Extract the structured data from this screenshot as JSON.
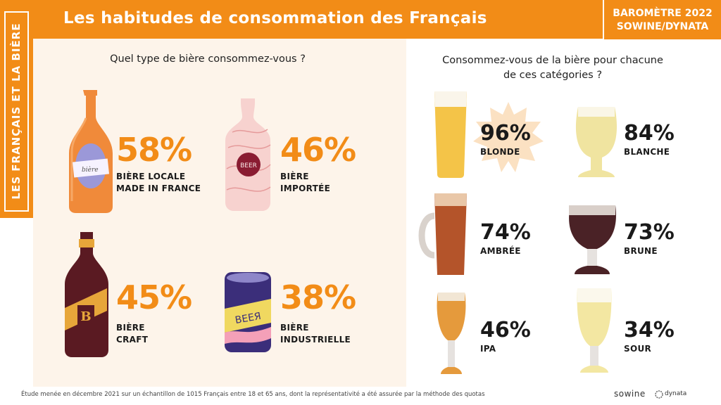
{
  "header": {
    "title": "Les habitudes de consommation des Français",
    "badge_line1": "BAROMÈTRE 2022",
    "badge_line2": "SOWINE/DYNATA"
  },
  "sidebar": {
    "label": "LES FRANÇAIS ET LA BIÈRE"
  },
  "left": {
    "question": "Quel type de bière consommez-vous ?",
    "items": [
      {
        "pct": "58%",
        "line1": "BIÈRE LOCALE",
        "line2": "MADE IN FRANCE",
        "icon": "local-beer-bottle-icon"
      },
      {
        "pct": "46%",
        "line1": "BIÈRE",
        "line2": "IMPORTÉE",
        "icon": "imported-beer-bottle-icon",
        "bottle_text": "BEER"
      },
      {
        "pct": "45%",
        "line1": "BIÈRE",
        "line2": "CRAFT",
        "icon": "craft-beer-bottle-icon",
        "bottle_text": "B"
      },
      {
        "pct": "38%",
        "line1": "BIÈRE",
        "line2": "INDUSTRIELLE",
        "icon": "beer-can-icon",
        "can_text": "BEEЯ"
      }
    ]
  },
  "right": {
    "question_line1": "Consommez-vous de la bière pour chacune",
    "question_line2": "de ces catégories ?",
    "items": [
      {
        "pct": "96%",
        "label": "BLONDE",
        "icon": "blonde-beer-glass-icon"
      },
      {
        "pct": "84%",
        "label": "BLANCHE",
        "icon": "white-beer-glass-icon"
      },
      {
        "pct": "74%",
        "label": "AMBRÉE",
        "icon": "amber-beer-mug-icon"
      },
      {
        "pct": "73%",
        "label": "BRUNE",
        "icon": "brown-beer-glass-icon"
      },
      {
        "pct": "46%",
        "label": "IPA",
        "icon": "ipa-beer-glass-icon"
      },
      {
        "pct": "34%",
        "label": "SOUR",
        "icon": "sour-beer-glass-icon"
      }
    ]
  },
  "footer": {
    "note": "Étude menée en décembre 2021 sur un échantillon de 1015 Français entre 18 et 65 ans, dont la représentativité a été assurée par la méthode des quotas",
    "logo_sowine": "sowine",
    "logo_dynata": "dynata"
  },
  "colors": {
    "accent": "#f28c17",
    "panel": "#fdf4ea",
    "text": "#1a1a1a"
  }
}
